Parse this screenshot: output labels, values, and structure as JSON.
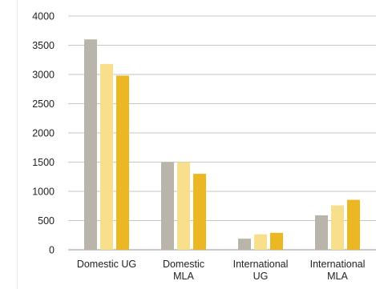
{
  "chart_data": {
    "type": "bar",
    "categories": [
      [
        "Domestic UG"
      ],
      [
        "Domestic",
        "MLA"
      ],
      [
        "International",
        "UG"
      ],
      [
        "International",
        "MLA"
      ]
    ],
    "series": [
      {
        "values": [
          3600,
          1500,
          190,
          590
        ],
        "color": "#b9b5ab"
      },
      {
        "values": [
          3180,
          1500,
          265,
          760
        ],
        "color": "#f7df8c"
      },
      {
        "values": [
          2980,
          1300,
          290,
          855
        ],
        "color": "#ebb722"
      }
    ],
    "y_ticks": [
      "4000",
      "3500",
      "3000",
      "2500",
      "2000",
      "1500",
      "1000",
      "500",
      "0"
    ],
    "ylim": [
      0,
      4000
    ],
    "grid": true,
    "legend": "none",
    "colors": {
      "gridline": "#c6c6c6",
      "axis": "#a6a6a6",
      "text": "#222222"
    }
  }
}
